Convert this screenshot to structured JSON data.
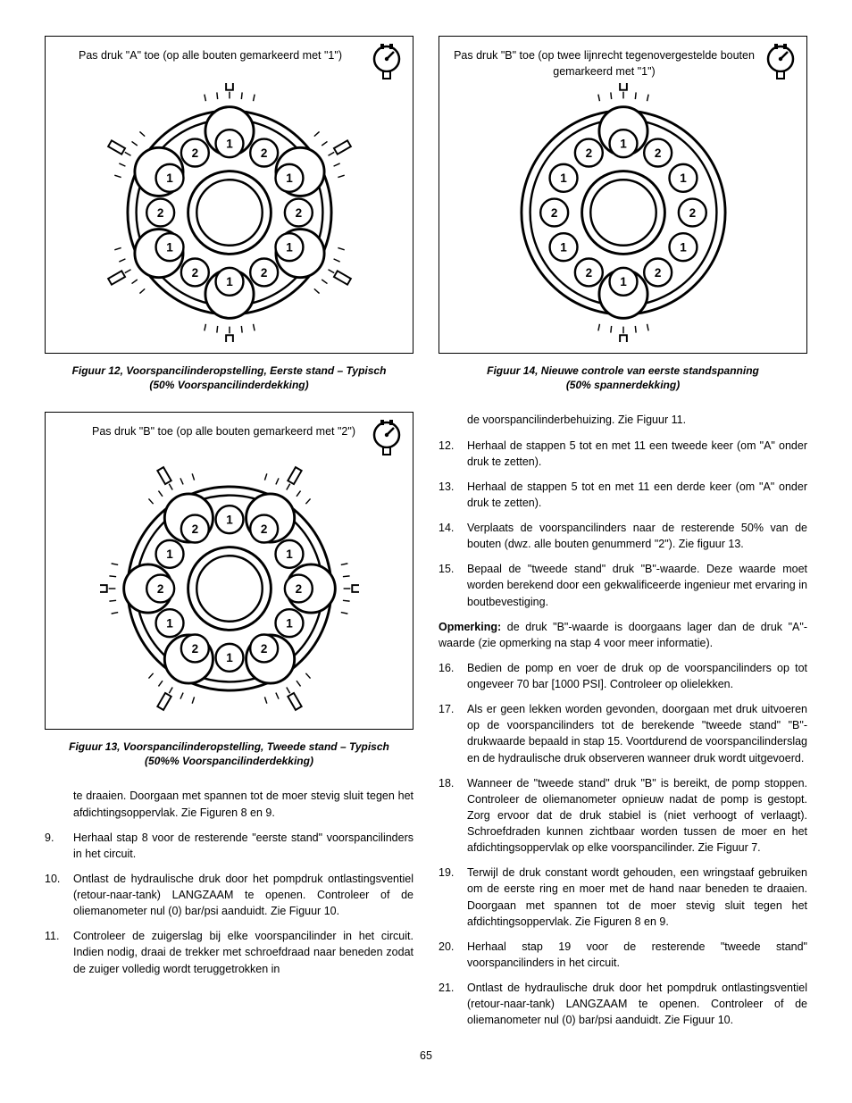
{
  "figures": {
    "fig12": {
      "label": "Pas druk \"A\" toe (op alle bouten gemarkeerd met \"1\")",
      "caption_l1": "Figuur 12, Voorspancilinderopstelling, Eerste stand – Typisch",
      "caption_l2": "(50% Voorspancilinderdekking)",
      "bolt_pattern": [
        "1",
        "2",
        "1",
        "2",
        "1",
        "2",
        "1",
        "2",
        "1",
        "2",
        "1",
        "2"
      ],
      "tensioned": [
        1,
        0,
        1,
        0,
        1,
        0,
        1,
        0,
        1,
        0,
        1,
        0
      ]
    },
    "fig13": {
      "label": "Pas druk \"B\" toe (op alle bouten gemarkeerd met \"2\")",
      "caption_l1": "Figuur 13, Voorspancilinderopstelling, Tweede stand – Typisch",
      "caption_l2": "(50%% Voorspancilinderdekking)",
      "bolt_pattern": [
        "1",
        "2",
        "1",
        "2",
        "1",
        "2",
        "1",
        "2",
        "1",
        "2",
        "1",
        "2"
      ],
      "tensioned": [
        0,
        1,
        0,
        1,
        0,
        1,
        0,
        1,
        0,
        1,
        0,
        1
      ]
    },
    "fig14": {
      "label": "Pas druk \"B\" toe (op twee lijnrecht tegenovergestelde bouten gemarkeerd met \"1\")",
      "caption_l1": "Figuur 14, Nieuwe controle van eerste standspanning",
      "caption_l2": "(50% spannerdekking)",
      "bolt_pattern": [
        "1",
        "2",
        "1",
        "2",
        "1",
        "2",
        "1",
        "2",
        "1",
        "2",
        "1",
        "2"
      ],
      "tensioned": [
        1,
        0,
        0,
        0,
        0,
        0,
        1,
        0,
        0,
        0,
        0,
        0
      ]
    }
  },
  "left_continued": "te draaien. Doorgaan met spannen tot de moer stevig sluit tegen het afdichtingsoppervlak. Zie Figuren 8 en 9.",
  "left_steps": [
    {
      "n": "9.",
      "t": "Herhaal stap 8 voor de resterende \"eerste stand\" voorspancilinders in het circuit."
    },
    {
      "n": "10.",
      "t": "Ontlast de hydraulische druk door het pompdruk ontlastingsventiel (retour-naar-tank) LANGZAAM te openen. Controleer of de oliemanometer nul (0) bar/psi aanduidt. Zie Figuur 10."
    },
    {
      "n": "11.",
      "t": "Controleer de zuigerslag bij elke voorspancilinder in het circuit. Indien nodig, draai de trekker met schroefdraad naar beneden zodat de zuiger volledig wordt teruggetrokken in"
    }
  ],
  "right_continued": "de voorspancilinderbehuizing. Zie Figuur 11.",
  "right_steps_a": [
    {
      "n": "12.",
      "t": "Herhaal de stappen 5 tot en met 11 een tweede keer (om \"A\" onder druk te zetten)."
    },
    {
      "n": "13.",
      "t": "Herhaal de stappen 5 tot en met 11 een derde keer (om \"A\" onder druk te zetten)."
    },
    {
      "n": "14.",
      "t": "Verplaats de voorspancilinders naar de resterende 50% van de bouten (dwz. alle bouten genummerd \"2\"). Zie figuur 13."
    },
    {
      "n": "15.",
      "t": "Bepaal de \"tweede stand\" druk \"B\"-waarde. Deze waarde moet worden berekend door een gekwalificeerde ingenieur met ervaring in boutbevestiging."
    }
  ],
  "note_label": "Opmerking:",
  "note_text": " de druk \"B\"-waarde is doorgaans lager dan de druk \"A\"-waarde (zie opmerking na stap 4 voor meer informatie).",
  "right_steps_b": [
    {
      "n": "16.",
      "t": "Bedien de pomp en voer de druk op de voorspancilinders op tot ongeveer 70 bar [1000 PSI]. Controleer op olielekken."
    },
    {
      "n": "17.",
      "t": "Als er geen lekken worden gevonden, doorgaan met druk uitvoeren op de voorspancilinders tot de berekende \"tweede stand\" \"B\"-drukwaarde bepaald in stap 15. Voortdurend de voorspancilinderslag en de hydraulische druk observeren wanneer druk wordt uitgevoerd."
    },
    {
      "n": "18.",
      "t": "Wanneer de \"tweede stand\" druk \"B\" is bereikt, de pomp stoppen. Controleer de oliemanometer opnieuw nadat de pomp is gestopt. Zorg ervoor dat de druk stabiel is (niet verhoogt of verlaagt). Schroefdraden kunnen zichtbaar worden tussen de moer en het afdichtingsoppervlak op elke voorspancilinder. Zie Figuur 7."
    },
    {
      "n": "19.",
      "t": "Terwijl de druk constant wordt gehouden, een wringstaaf gebruiken om de eerste ring en moer met de hand naar beneden te draaien. Doorgaan met spannen tot de moer stevig sluit tegen het afdichtingsoppervlak. Zie Figuren 8 en 9."
    },
    {
      "n": "20.",
      "t": "Herhaal stap 19 voor de resterende \"tweede stand\" voorspancilinders in het circuit."
    },
    {
      "n": "21.",
      "t": "Ontlast de hydraulische druk door het pompdruk ontlastingsventiel (retour-naar-tank) LANGZAAM te openen. Controleer of de oliemanometer nul (0) bar/psi aanduidt. Zie Figuur 10."
    }
  ],
  "page_number": "65",
  "style": {
    "stroke": "#000000",
    "fill_bg": "#ffffff",
    "font_family": "Arial",
    "body_fontsize": 12.5,
    "caption_fontsize": 12
  }
}
